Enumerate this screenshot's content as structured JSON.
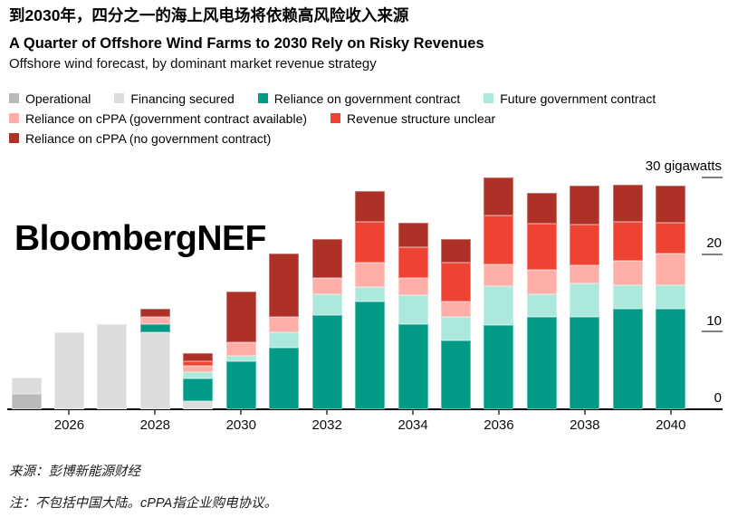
{
  "title_cn": "到2030年，四分之一的海上风电场将依赖高风险收入来源",
  "title_en": "A Quarter of Offshore Wind Farms to 2030 Rely on Risky Revenues",
  "subtitle": "Offshore wind forecast, by dominant market revenue strategy",
  "watermark": "BloombergNEF",
  "footer": {
    "source_line": "来源：彭博新能源财经",
    "note_line": "注：不包括中国大陆。cPPA指企业购电协议。"
  },
  "chart_data": {
    "type": "bar",
    "stacked": true,
    "title": "Offshore wind forecast, by dominant market revenue strategy",
    "ylabel": "gigawatts",
    "ylim": [
      0,
      30
    ],
    "yticks": [
      0,
      10,
      20,
      30
    ],
    "ytick_top_label": "30 gigawatts",
    "grid": false,
    "legend_position": "top",
    "legend_rows": [
      [
        0,
        1,
        2,
        3
      ],
      [
        4,
        5
      ],
      [
        6
      ]
    ],
    "categories": [
      2025,
      2026,
      2027,
      2028,
      2029,
      2030,
      2031,
      2032,
      2033,
      2034,
      2035,
      2036,
      2037,
      2038,
      2039,
      2040
    ],
    "xtick_labels": [
      "2026",
      "2028",
      "2030",
      "2032",
      "2034",
      "2036",
      "2038",
      "2040"
    ],
    "series": [
      {
        "name": "Operational",
        "color": "#b9b9b9",
        "values": [
          2.0,
          0,
          0,
          0,
          0,
          0,
          0,
          0,
          0,
          0,
          0,
          0,
          0,
          0,
          0,
          0
        ]
      },
      {
        "name": "Financing secured",
        "color": "#dcdcdc",
        "values": [
          2.1,
          10.0,
          11.0,
          10.0,
          1.0,
          0,
          0,
          0,
          0,
          0,
          0,
          0,
          0,
          0,
          0,
          0
        ]
      },
      {
        "name": "Reliance on government contract",
        "color": "#009a86",
        "values": [
          0,
          0,
          0,
          1.0,
          3.0,
          6.2,
          8.0,
          12.2,
          14.0,
          11.0,
          8.9,
          10.9,
          11.9,
          12.0,
          13.0,
          13.0
        ]
      },
      {
        "name": "Future government contract",
        "color": "#ace9dc",
        "values": [
          0,
          0,
          0,
          0,
          0.8,
          0.7,
          2.0,
          2.7,
          1.8,
          3.8,
          3.1,
          5.0,
          3.0,
          4.3,
          3.0,
          3.0
        ]
      },
      {
        "name": "Reliance on cPPA (government contract available)",
        "color": "#ffafa8",
        "values": [
          0,
          0,
          0,
          1.0,
          0.8,
          1.8,
          1.9,
          2.1,
          3.2,
          2.2,
          2.0,
          2.8,
          3.1,
          2.3,
          3.2,
          4.1
        ]
      },
      {
        "name": "Revenue structure unclear",
        "color": "#ee4333",
        "values": [
          0,
          0,
          0,
          0,
          0.6,
          0,
          0,
          0,
          5.2,
          4.0,
          5.0,
          6.4,
          6.0,
          5.3,
          5.0,
          4.0
        ]
      },
      {
        "name": "Reliance on cPPA (no government contract)",
        "color": "#ad3126",
        "values": [
          0,
          0,
          0,
          1.0,
          1.1,
          6.5,
          8.2,
          5.0,
          4.0,
          3.1,
          3.0,
          4.9,
          4.0,
          5.0,
          4.9,
          4.9
        ]
      }
    ]
  }
}
